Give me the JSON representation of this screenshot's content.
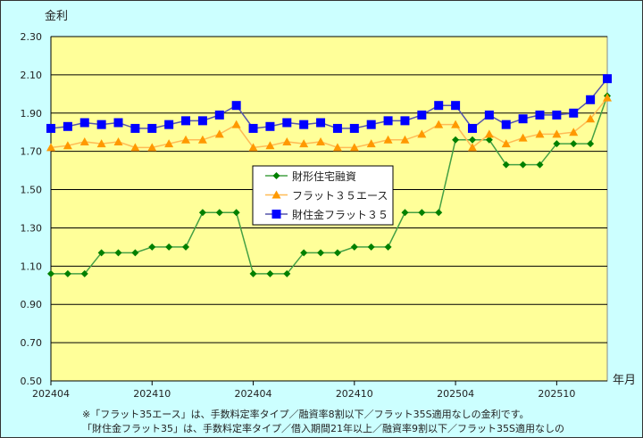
{
  "chart_data": {
    "type": "line",
    "ylabel": "金利",
    "xlabel": "年月",
    "ylim": [
      0.5,
      2.3
    ],
    "yticks": [
      "0.50",
      "0.70",
      "0.90",
      "1.10",
      "1.30",
      "1.50",
      "1.70",
      "1.90",
      "2.10",
      "2.30"
    ],
    "xtick_labels": [
      "202404",
      "202410",
      "202404",
      "202410",
      "202504",
      "202510"
    ],
    "xtick_every": 6,
    "grid": true,
    "legend_position": "center",
    "series": [
      {
        "name": "財形住宅融資",
        "color": "#008000",
        "line_color": "#44a044",
        "marker": "diamond",
        "values": [
          1.06,
          1.06,
          1.06,
          1.17,
          1.17,
          1.17,
          1.2,
          1.2,
          1.2,
          1.38,
          1.38,
          1.38,
          1.06,
          1.06,
          1.06,
          1.17,
          1.17,
          1.17,
          1.2,
          1.2,
          1.2,
          1.38,
          1.38,
          1.38,
          1.76,
          1.76,
          1.76,
          1.63,
          1.63,
          1.63,
          1.74,
          1.74,
          1.74,
          1.99
        ]
      },
      {
        "name": "フラット３５エース",
        "color": "#ff9900",
        "line_color": "#ffbb55",
        "marker": "triangle",
        "values": [
          1.72,
          1.73,
          1.75,
          1.74,
          1.75,
          1.72,
          1.72,
          1.74,
          1.76,
          1.76,
          1.79,
          1.84,
          1.72,
          1.73,
          1.75,
          1.74,
          1.75,
          1.72,
          1.72,
          1.74,
          1.76,
          1.76,
          1.79,
          1.84,
          1.84,
          1.72,
          1.79,
          1.74,
          1.77,
          1.79,
          1.79,
          1.8,
          1.87,
          1.98
        ]
      },
      {
        "name": "財住金フラット３５",
        "color": "#0000ff",
        "line_color": "#5555aa",
        "marker": "square",
        "values": [
          1.82,
          1.83,
          1.85,
          1.84,
          1.85,
          1.82,
          1.82,
          1.84,
          1.86,
          1.86,
          1.89,
          1.94,
          1.82,
          1.83,
          1.85,
          1.84,
          1.85,
          1.82,
          1.82,
          1.84,
          1.86,
          1.86,
          1.89,
          1.94,
          1.94,
          1.82,
          1.89,
          1.84,
          1.87,
          1.89,
          1.89,
          1.9,
          1.97,
          2.08
        ]
      }
    ]
  },
  "notes": [
    "※「フラット35エース」は、手数料定率タイプ／融資率8割以下／フラット35S適用なしの金利です。",
    "「財住金フラット35」は、手数料定率タイプ／借入期間21年以上／融資率9割以下／フラット35S適用なしの"
  ],
  "colors": {
    "background": "#ccffff",
    "plot": "#ffff99"
  }
}
